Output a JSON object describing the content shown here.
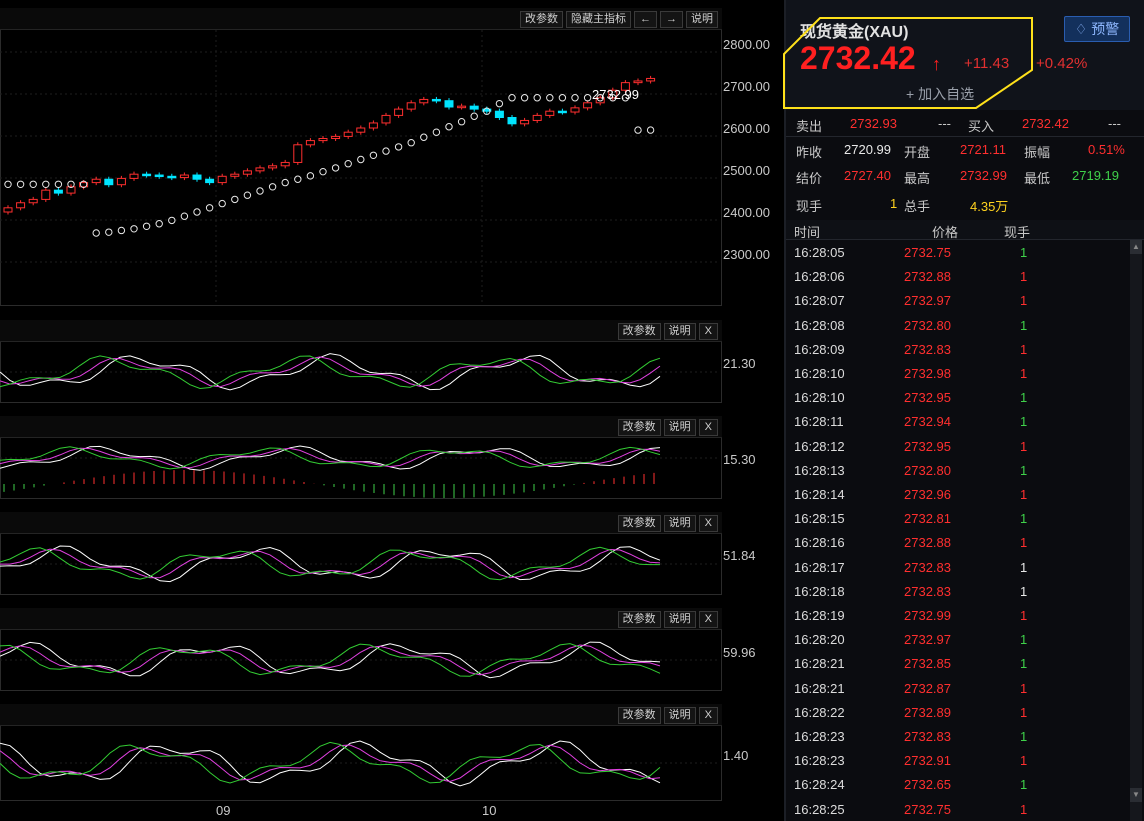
{
  "main_chart": {
    "buttons": [
      "改参数",
      "隐藏主指标",
      "←",
      "→",
      "说明"
    ],
    "y_ticks": [
      "2800.00",
      "2700.00",
      "2600.00",
      "2500.00",
      "2400.00",
      "2300.00"
    ],
    "last_price_label": "2732.99"
  },
  "x_axis": {
    "labels": [
      "09",
      "10"
    ]
  },
  "indicators": [
    {
      "buttons": [
        "改参数",
        "说明",
        "X"
      ],
      "value": "21.30"
    },
    {
      "buttons": [
        "改参数",
        "说明",
        "X"
      ],
      "value": "15.30"
    },
    {
      "buttons": [
        "改参数",
        "说明",
        "X"
      ],
      "value": "51.84"
    },
    {
      "buttons": [
        "改参数",
        "说明",
        "X"
      ],
      "value": "59.96"
    },
    {
      "buttons": [
        "改参数",
        "说明",
        "X"
      ],
      "value": "1.40"
    }
  ],
  "quote": {
    "name": "现货黄金(XAU)",
    "alert_label": "预警",
    "price": "2732.42",
    "arrow": "↑",
    "change": "+11.43",
    "change_pct": "+0.42%",
    "add_label": "+ 加入自选",
    "ask_label": "卖出",
    "ask": "2732.93",
    "ask_vol": "---",
    "bid_label": "买入",
    "bid": "2732.42",
    "bid_vol": "---",
    "prev_close_label": "昨收",
    "prev_close": "2720.99",
    "open_label": "开盘",
    "open": "2721.11",
    "amplitude_label": "振幅",
    "amplitude": "0.51%",
    "settle_label": "结价",
    "settle": "2727.40",
    "high_label": "最高",
    "high": "2732.99",
    "low_label": "最低",
    "low": "2719.19",
    "cur_vol_label": "现手",
    "cur_vol": "1",
    "total_vol_label": "总手",
    "total_vol": "4.35万"
  },
  "ticks_header": {
    "time": "时间",
    "price": "价格",
    "vol": "现手"
  },
  "ticks": [
    {
      "time": "16:28:05",
      "price": "2732.75",
      "vol": "1",
      "vc": "green"
    },
    {
      "time": "16:28:06",
      "price": "2732.88",
      "vol": "1",
      "vc": "red"
    },
    {
      "time": "16:28:07",
      "price": "2732.97",
      "vol": "1",
      "vc": "red"
    },
    {
      "time": "16:28:08",
      "price": "2732.80",
      "vol": "1",
      "vc": "green"
    },
    {
      "time": "16:28:09",
      "price": "2732.83",
      "vol": "1",
      "vc": "red"
    },
    {
      "time": "16:28:10",
      "price": "2732.98",
      "vol": "1",
      "vc": "red"
    },
    {
      "time": "16:28:10",
      "price": "2732.95",
      "vol": "1",
      "vc": "green"
    },
    {
      "time": "16:28:11",
      "price": "2732.94",
      "vol": "1",
      "vc": "green"
    },
    {
      "time": "16:28:12",
      "price": "2732.95",
      "vol": "1",
      "vc": "red"
    },
    {
      "time": "16:28:13",
      "price": "2732.80",
      "vol": "1",
      "vc": "green"
    },
    {
      "time": "16:28:14",
      "price": "2732.96",
      "vol": "1",
      "vc": "red"
    },
    {
      "time": "16:28:15",
      "price": "2732.81",
      "vol": "1",
      "vc": "green"
    },
    {
      "time": "16:28:16",
      "price": "2732.88",
      "vol": "1",
      "vc": "red"
    },
    {
      "time": "16:28:17",
      "price": "2732.83",
      "vol": "1",
      "vc": "white"
    },
    {
      "time": "16:28:18",
      "price": "2732.83",
      "vol": "1",
      "vc": "white"
    },
    {
      "time": "16:28:19",
      "price": "2732.99",
      "vol": "1",
      "vc": "red"
    },
    {
      "time": "16:28:20",
      "price": "2732.97",
      "vol": "1",
      "vc": "green"
    },
    {
      "time": "16:28:21",
      "price": "2732.85",
      "vol": "1",
      "vc": "green"
    },
    {
      "time": "16:28:21",
      "price": "2732.87",
      "vol": "1",
      "vc": "red"
    },
    {
      "time": "16:28:22",
      "price": "2732.89",
      "vol": "1",
      "vc": "red"
    },
    {
      "time": "16:28:23",
      "price": "2732.83",
      "vol": "1",
      "vc": "green"
    },
    {
      "time": "16:28:23",
      "price": "2732.91",
      "vol": "1",
      "vc": "red"
    },
    {
      "time": "16:28:24",
      "price": "2732.65",
      "vol": "1",
      "vc": "green"
    },
    {
      "time": "16:28:25",
      "price": "2732.75",
      "vol": "1",
      "vc": "red"
    }
  ],
  "colors": {
    "up": "#ff2f2f",
    "down": "#00e5ff",
    "neutral": "#ffffff",
    "accent": "#ffe000"
  }
}
